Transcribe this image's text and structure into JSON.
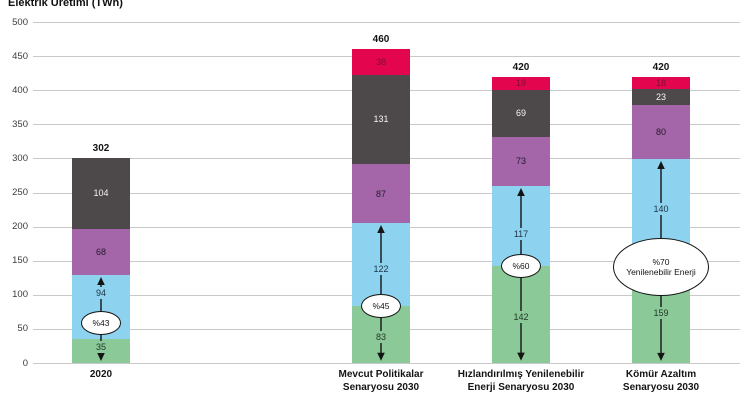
{
  "chart_data": {
    "type": "bar",
    "stacked": true,
    "title": "Elektrik Üretimi (TWh)",
    "xlabel": "",
    "ylabel": "",
    "ylim": [
      0,
      500
    ],
    "ytick_step": 50,
    "grid": true,
    "legend": "none",
    "categories": [
      "2020",
      "Mevcut Politikalar Senaryosu 2030",
      "Hızlandırılmış Yenilenebilir Enerji Senaryosu 2030",
      "Kömür Azaltım Senaryosu 2030"
    ],
    "category_lines": [
      [
        "2020"
      ],
      [
        "Mevcut Politikalar",
        "Senaryosu 2030"
      ],
      [
        "Hızlandırılmış Yenilenebilir",
        "Enerji Senaryosu 2030"
      ],
      [
        "Kömür Azaltım",
        "Senaryosu 2030"
      ]
    ],
    "series": [
      {
        "key": "green",
        "color": "#8BC998",
        "label_color": "#1f3527",
        "values": [
          35,
          83,
          142,
          159
        ]
      },
      {
        "key": "blue",
        "color": "#8DD2EE",
        "label_color": "#1d3342",
        "values": [
          94,
          122,
          117,
          140
        ]
      },
      {
        "key": "purple",
        "color": "#A466A8",
        "label_color": "#221a2b",
        "values": [
          68,
          87,
          73,
          80
        ]
      },
      {
        "key": "gray",
        "color": "#4D494B",
        "label_color": "#f5f3f4",
        "values": [
          104,
          131,
          69,
          23
        ]
      },
      {
        "key": "red",
        "color": "#E4054F",
        "label_color": "#7e1031",
        "values": [
          0,
          38,
          19,
          18
        ]
      }
    ],
    "totals": [
      "302",
      "460",
      "420",
      "420"
    ],
    "annotations": [
      {
        "bar": 0,
        "label": "%43",
        "label2": "",
        "large": false
      },
      {
        "bar": 1,
        "label": "%45",
        "label2": "",
        "large": false
      },
      {
        "bar": 2,
        "label": "%60",
        "label2": "",
        "large": false
      },
      {
        "bar": 3,
        "label": "%70",
        "label2": "Yenilenebilir Enerji",
        "large": true
      }
    ]
  }
}
